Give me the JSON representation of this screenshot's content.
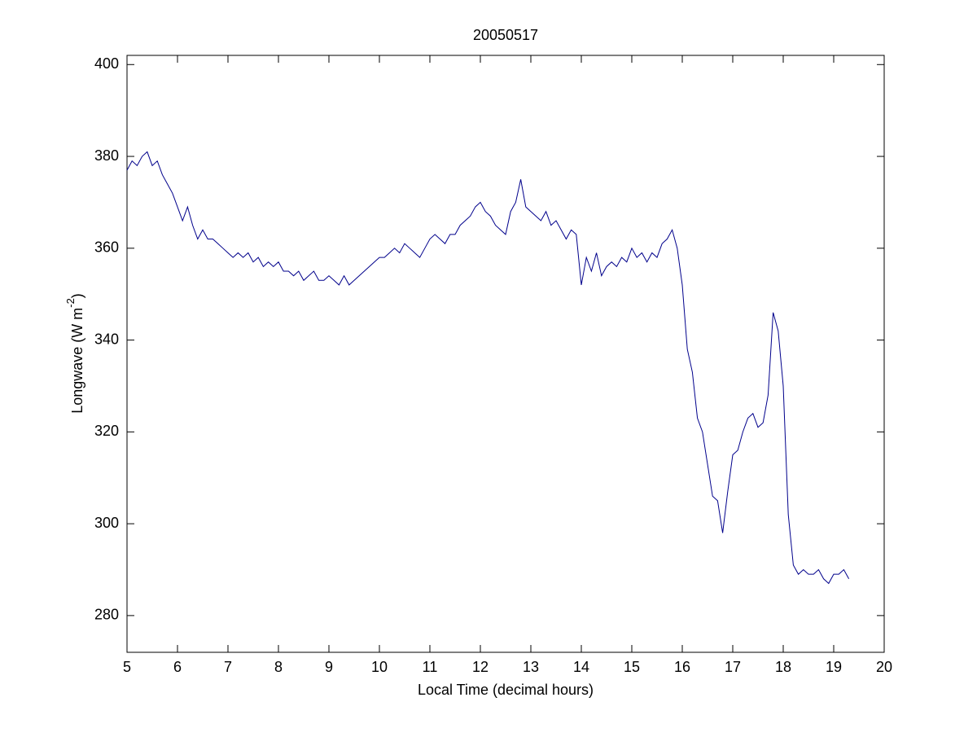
{
  "chart_data": {
    "type": "line",
    "title": "20050517",
    "xlabel": "Local Time (decimal hours)",
    "ylabel": {
      "text": "Longwave (W m",
      "superscript": "-2",
      "suffix": ")"
    },
    "x": [
      5.0,
      5.1,
      5.2,
      5.3,
      5.4,
      5.5,
      5.6,
      5.7,
      5.8,
      5.9,
      6.0,
      6.1,
      6.2,
      6.3,
      6.4,
      6.5,
      6.6,
      6.7,
      6.8,
      6.9,
      7.0,
      7.1,
      7.2,
      7.3,
      7.4,
      7.5,
      7.6,
      7.7,
      7.8,
      7.9,
      8.0,
      8.1,
      8.2,
      8.3,
      8.4,
      8.5,
      8.6,
      8.7,
      8.8,
      8.9,
      9.0,
      9.1,
      9.2,
      9.3,
      9.4,
      9.5,
      9.6,
      9.7,
      9.8,
      9.9,
      10.0,
      10.1,
      10.2,
      10.3,
      10.4,
      10.5,
      10.6,
      10.7,
      10.8,
      10.9,
      11.0,
      11.1,
      11.2,
      11.3,
      11.4,
      11.5,
      11.6,
      11.7,
      11.8,
      11.9,
      12.0,
      12.1,
      12.2,
      12.3,
      12.4,
      12.5,
      12.6,
      12.7,
      12.8,
      12.9,
      13.0,
      13.1,
      13.2,
      13.3,
      13.4,
      13.5,
      13.6,
      13.7,
      13.8,
      13.9,
      14.0,
      14.1,
      14.2,
      14.3,
      14.4,
      14.5,
      14.6,
      14.7,
      14.8,
      14.9,
      15.0,
      15.1,
      15.2,
      15.3,
      15.4,
      15.5,
      15.6,
      15.7,
      15.8,
      15.9,
      16.0,
      16.1,
      16.2,
      16.3,
      16.4,
      16.5,
      16.6,
      16.7,
      16.8,
      16.9,
      17.0,
      17.1,
      17.2,
      17.3,
      17.4,
      17.5,
      17.6,
      17.7,
      17.8,
      17.9,
      18.0,
      18.1,
      18.2,
      18.3,
      18.4,
      18.5,
      18.6,
      18.7,
      18.8,
      18.9,
      19.0,
      19.1,
      19.2,
      19.3
    ],
    "series": [
      {
        "name": "Longwave",
        "color": "#00008b",
        "values": [
          377,
          379,
          378,
          380,
          381,
          378,
          379,
          376,
          374,
          372,
          369,
          366,
          369,
          365,
          362,
          364,
          362,
          362,
          361,
          360,
          359,
          358,
          359,
          358,
          359,
          357,
          358,
          356,
          357,
          356,
          357,
          355,
          355,
          354,
          355,
          353,
          354,
          355,
          353,
          353,
          354,
          353,
          352,
          354,
          352,
          353,
          354,
          355,
          356,
          357,
          358,
          358,
          359,
          360,
          359,
          361,
          360,
          359,
          358,
          360,
          362,
          363,
          362,
          361,
          363,
          363,
          365,
          366,
          367,
          369,
          370,
          368,
          367,
          365,
          364,
          363,
          368,
          370,
          375,
          369,
          368,
          367,
          366,
          368,
          365,
          366,
          364,
          362,
          364,
          363,
          352,
          358,
          355,
          359,
          354,
          356,
          357,
          356,
          358,
          357,
          360,
          358,
          359,
          357,
          359,
          358,
          361,
          362,
          364,
          360,
          352,
          338,
          333,
          323,
          320,
          313,
          306,
          305,
          298,
          307,
          315,
          316,
          320,
          323,
          324,
          321,
          322,
          328,
          346,
          342,
          330,
          302,
          291,
          289,
          290,
          289,
          289,
          290,
          288,
          287,
          289,
          289,
          290,
          288
        ]
      }
    ],
    "xlim": [
      5,
      20
    ],
    "xticks": [
      5,
      6,
      7,
      8,
      9,
      10,
      11,
      12,
      13,
      14,
      15,
      16,
      17,
      18,
      19,
      20
    ],
    "ylim": [
      272,
      402
    ],
    "yticks": [
      280,
      300,
      320,
      340,
      360,
      380,
      400
    ],
    "grid": false
  }
}
